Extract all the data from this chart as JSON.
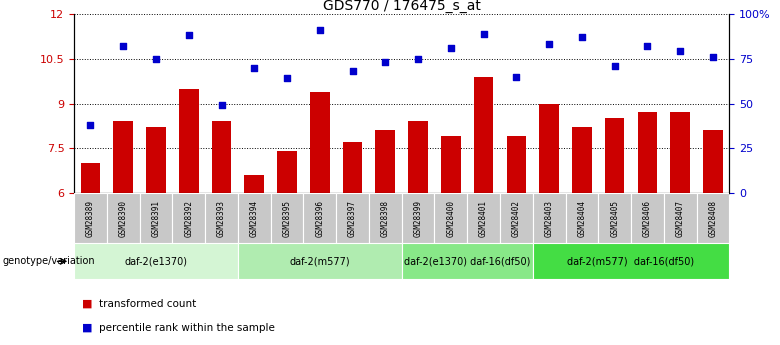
{
  "title": "GDS770 / 176475_s_at",
  "samples": [
    "GSM28389",
    "GSM28390",
    "GSM28391",
    "GSM28392",
    "GSM28393",
    "GSM28394",
    "GSM28395",
    "GSM28396",
    "GSM28397",
    "GSM28398",
    "GSM28399",
    "GSM28400",
    "GSM28401",
    "GSM28402",
    "GSM28403",
    "GSM28404",
    "GSM28405",
    "GSM28406",
    "GSM28407",
    "GSM28408"
  ],
  "bar_values": [
    7.0,
    8.4,
    8.2,
    9.5,
    8.4,
    6.6,
    7.4,
    9.4,
    7.7,
    8.1,
    8.4,
    7.9,
    9.9,
    7.9,
    9.0,
    8.2,
    8.5,
    8.7,
    8.7,
    8.1
  ],
  "scatter_values": [
    38,
    82,
    75,
    88,
    49,
    70,
    64,
    91,
    68,
    73,
    75,
    81,
    89,
    65,
    83,
    87,
    71,
    82,
    79,
    76
  ],
  "bar_color": "#cc0000",
  "scatter_color": "#0000cc",
  "ylim_left": [
    6,
    12
  ],
  "ylim_right": [
    0,
    100
  ],
  "yticks_left": [
    6,
    7.5,
    9,
    10.5,
    12
  ],
  "ytick_labels_left": [
    "6",
    "7.5",
    "9",
    "10.5",
    "12"
  ],
  "yticks_right": [
    0,
    25,
    50,
    75,
    100
  ],
  "ytick_labels_right": [
    "0",
    "25",
    "50",
    "75",
    "100%"
  ],
  "groups": [
    {
      "label": "daf-2(e1370)",
      "start": 0,
      "end": 4,
      "color": "#d4f5d4"
    },
    {
      "label": "daf-2(m577)",
      "start": 5,
      "end": 9,
      "color": "#b0ecb0"
    },
    {
      "label": "daf-2(e1370) daf-16(df50)",
      "start": 10,
      "end": 13,
      "color": "#88e888"
    },
    {
      "label": "daf-2(m577)  daf-16(df50)",
      "start": 14,
      "end": 19,
      "color": "#44dd44"
    }
  ],
  "genotype_label": "genotype/variation",
  "legend_bar": "transformed count",
  "legend_scatter": "percentile rank within the sample",
  "background_color": "#ffffff",
  "sample_box_color": "#c8c8c8",
  "title_fontsize": 10,
  "axis_fontsize": 8,
  "label_fontsize": 6
}
